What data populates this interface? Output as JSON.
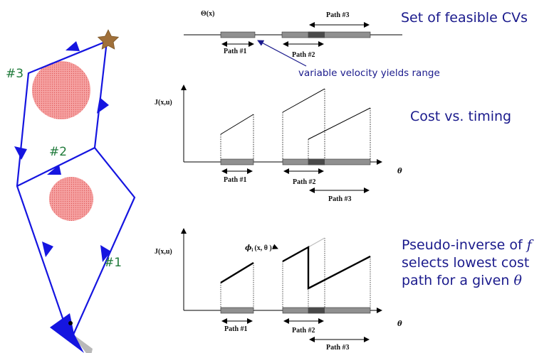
{
  "left_map": {
    "labels": {
      "path3": "#3",
      "path2": "#2",
      "path1": "#1"
    },
    "colors": {
      "route": "#1515e0",
      "obstacle": "#f28a8a",
      "goal": "#a0703a",
      "vehicle": "#1515e0"
    },
    "icons": [
      "star-goal-icon",
      "vehicle-arrow-icon",
      "obstacle-circle-icon"
    ]
  },
  "top_panel": {
    "axis_label": "Θ(x)",
    "path1_label": "Path #1",
    "path2_label": "Path #2",
    "path3_label": "Path #3",
    "title": "Set of feasible CVs",
    "annotation": "variable velocity yields range"
  },
  "middle_panel": {
    "ylabel": "J(x,u)",
    "xlabel": "θ",
    "path1_label": "Path #1",
    "path2_label": "Path #2",
    "path3_label": "Path #3",
    "title": "Cost vs. timing"
  },
  "bottom_panel": {
    "ylabel": "J(x,u)",
    "xlabel": "θ",
    "phi_label_main": "ϕ",
    "phi_label_sub": "i",
    "phi_label_args": "(x, θ )",
    "path1_label": "Path #1",
    "path2_label": "Path #2",
    "path3_label": "Path #3",
    "caption_line1": "Pseudo-inverse of",
    "caption_f": "f",
    "caption_line2": "selects lowest cost",
    "caption_line3": "path for a given",
    "caption_theta": "θ"
  },
  "colors": {
    "title_text": "#1a1a8c",
    "band": "#909090",
    "band_overlap": "#4a4a4a"
  }
}
